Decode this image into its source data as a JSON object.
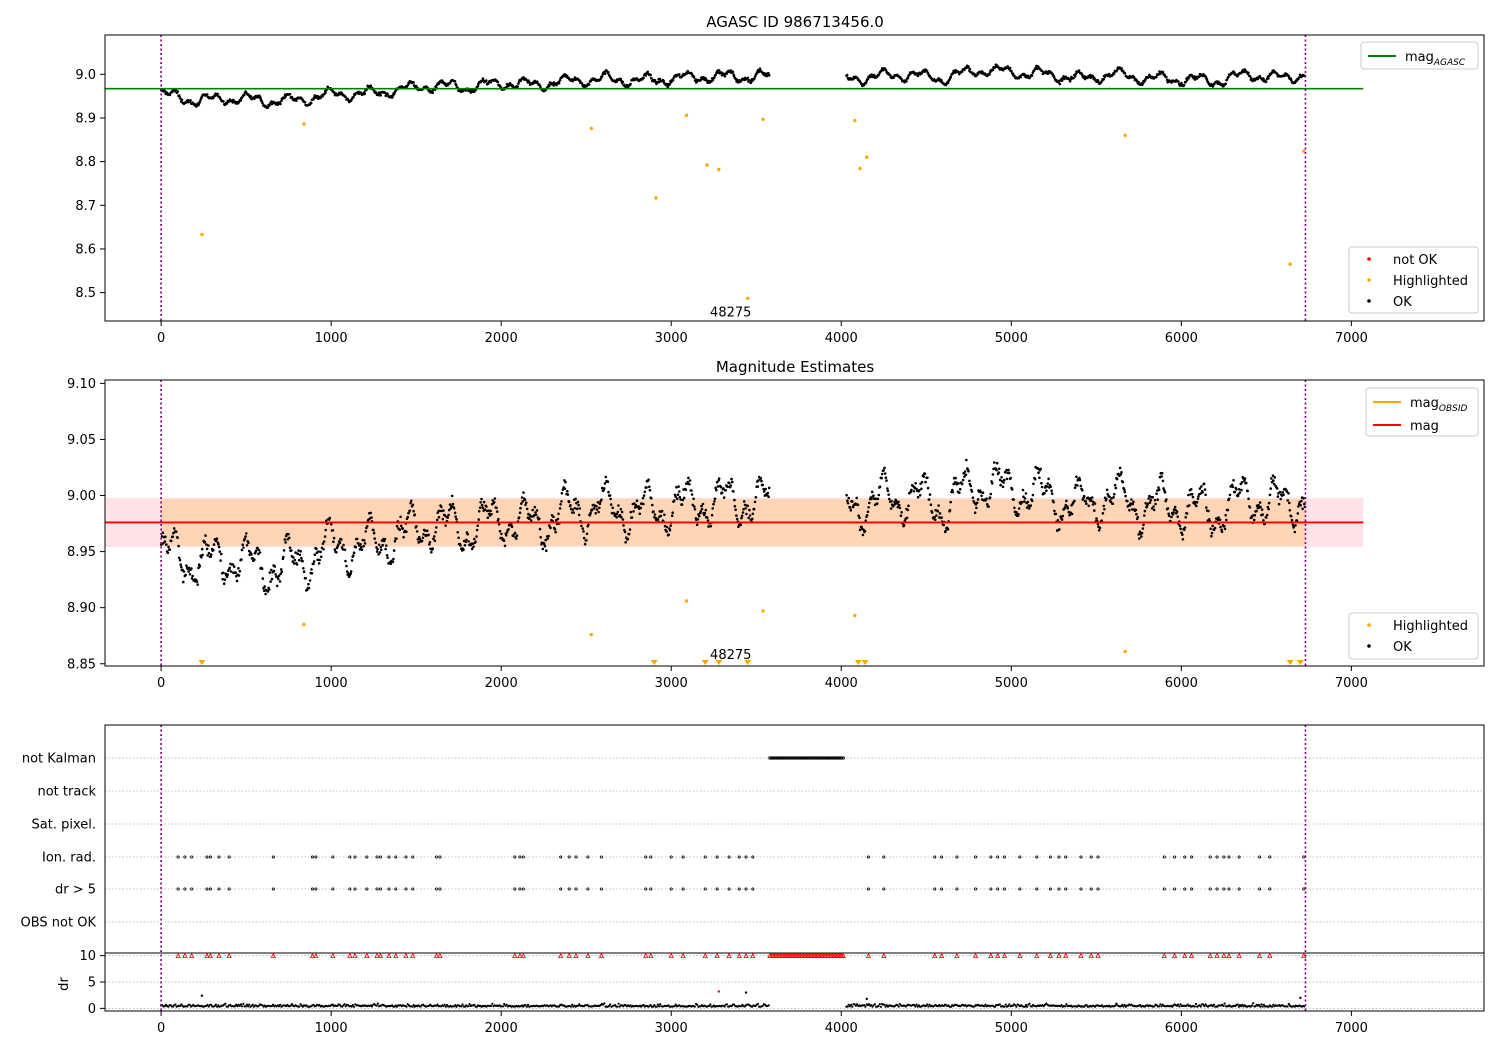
{
  "chart_data": [
    {
      "type": "scatter",
      "title": "AGASC ID 986713456.0",
      "xlim": [
        -330,
        7780
      ],
      "ylim": [
        8.435,
        9.09
      ],
      "xticks": [
        "0",
        "1000",
        "2000",
        "3000",
        "4000",
        "5000",
        "6000",
        "7000"
      ],
      "yticks": [
        "8.5",
        "8.6",
        "8.7",
        "8.8",
        "8.9",
        "9.0"
      ],
      "mag_agasc": 8.967,
      "mag_agasc_x_range": [
        -330,
        7070
      ],
      "obsid_boundaries": [
        0,
        6730
      ],
      "annotation": {
        "text": "48275",
        "x": 3350,
        "y": 8.455
      },
      "legend_lines": [
        {
          "label_main": "mag",
          "label_sub": "AGASC",
          "color": "#008000"
        }
      ],
      "legend_points": [
        {
          "label": "not OK",
          "color": "#ff0000"
        },
        {
          "label": "Highlighted",
          "color": "#ffa500"
        },
        {
          "label": "OK",
          "color": "#000000"
        }
      ],
      "highlighted_points": [
        {
          "x": 240,
          "y": 8.633
        },
        {
          "x": 840,
          "y": 8.886
        },
        {
          "x": 2530,
          "y": 8.876
        },
        {
          "x": 2910,
          "y": 8.717
        },
        {
          "x": 3090,
          "y": 8.906
        },
        {
          "x": 3210,
          "y": 8.792
        },
        {
          "x": 3280,
          "y": 8.782
        },
        {
          "x": 3450,
          "y": 8.487
        },
        {
          "x": 3540,
          "y": 8.897
        },
        {
          "x": 4080,
          "y": 8.894
        },
        {
          "x": 4110,
          "y": 8.784
        },
        {
          "x": 4150,
          "y": 8.81
        },
        {
          "x": 5670,
          "y": 8.86
        },
        {
          "x": 6640,
          "y": 8.565
        },
        {
          "x": 6720,
          "y": 8.824
        }
      ],
      "ok_trend": {
        "segments": [
          [
            0,
            3580
          ],
          [
            4030,
            6730
          ]
        ],
        "x": [
          0,
          200,
          400,
          600,
          800,
          1000,
          1200,
          1400,
          1600,
          1800,
          2000,
          2200,
          2400,
          2600,
          2800,
          3000,
          3200,
          3400,
          3580,
          4030,
          4200,
          4400,
          4600,
          4800,
          5000,
          5200,
          5400,
          5600,
          5800,
          6000,
          6200,
          6400,
          6600,
          6730
        ],
        "y": [
          8.955,
          8.94,
          8.945,
          8.94,
          8.94,
          8.955,
          8.955,
          8.965,
          8.975,
          8.97,
          8.98,
          8.975,
          8.985,
          8.99,
          8.985,
          8.99,
          8.995,
          8.995,
          8.995,
          8.99,
          8.995,
          9.0,
          8.99,
          9.01,
          9.005,
          9.0,
          8.99,
          9.0,
          8.99,
          8.99,
          8.985,
          9.0,
          8.99,
          9.0
        ]
      }
    },
    {
      "type": "scatter",
      "title": "Magnitude Estimates",
      "xlim": [
        -330,
        7780
      ],
      "ylim": [
        8.848,
        9.103
      ],
      "xticks": [
        "0",
        "1000",
        "2000",
        "3000",
        "4000",
        "5000",
        "6000",
        "7000"
      ],
      "yticks": [
        "8.85",
        "8.90",
        "8.95",
        "9.00",
        "9.05",
        "9.10"
      ],
      "mag": 8.976,
      "mag_band": [
        8.954,
        8.998
      ],
      "mag_band_x_range": [
        -330,
        7070
      ],
      "mag_obsid": 8.976,
      "mag_obsid_band": [
        8.955,
        8.997
      ],
      "mag_obsid_x_range": [
        0,
        6730
      ],
      "obsid_boundaries": [
        0,
        6730
      ],
      "annotation": {
        "text": "48275",
        "x": 3350,
        "y": 8.858
      },
      "legend_lines": [
        {
          "label_main": "mag",
          "label_sub": "OBSID",
          "color": "#ffa500"
        },
        {
          "label_main": "mag",
          "label_sub": "",
          "color": "#ff0000"
        }
      ],
      "legend_points": [
        {
          "label": "Highlighted",
          "color": "#ffa500"
        },
        {
          "label": "OK",
          "color": "#000000"
        }
      ],
      "highlighted_points": [
        {
          "x": 840,
          "y": 8.885
        },
        {
          "x": 2530,
          "y": 8.876
        },
        {
          "x": 3090,
          "y": 8.906
        },
        {
          "x": 3540,
          "y": 8.897
        },
        {
          "x": 4080,
          "y": 8.893
        },
        {
          "x": 5670,
          "y": 8.861
        }
      ],
      "lower_limit_markers": [
        240,
        2900,
        3200,
        3280,
        3450,
        4100,
        4140,
        6640,
        6700
      ],
      "ok_trend": {
        "segments": [
          [
            0,
            3580
          ],
          [
            4030,
            6730
          ]
        ],
        "x": [
          0,
          200,
          400,
          600,
          800,
          1000,
          1200,
          1400,
          1600,
          1800,
          2000,
          2200,
          2400,
          2600,
          2800,
          3000,
          3200,
          3400,
          3580,
          4030,
          4200,
          4400,
          4600,
          4800,
          5000,
          5200,
          5400,
          5600,
          5800,
          6000,
          6200,
          6400,
          6600,
          6730
        ],
        "y": [
          8.95,
          8.94,
          8.945,
          8.935,
          8.94,
          8.955,
          8.955,
          8.965,
          8.975,
          8.97,
          8.98,
          8.975,
          8.985,
          8.99,
          8.985,
          8.99,
          8.995,
          8.995,
          8.995,
          8.99,
          8.995,
          9.0,
          8.99,
          9.01,
          9.005,
          9.0,
          8.99,
          9.0,
          8.99,
          8.99,
          8.985,
          9.0,
          8.99,
          9.0
        ]
      }
    },
    {
      "type": "scatter",
      "title": "",
      "xlim": [
        -330,
        7780
      ],
      "xticks": [
        "0",
        "1000",
        "2000",
        "3000",
        "4000",
        "5000",
        "6000",
        "7000"
      ],
      "flag_rows": [
        "not Kalman",
        "not track",
        "Sat. pixel.",
        "Ion. rad.",
        "dr > 5",
        "OBS not OK"
      ],
      "not_kalman_range": [
        3580,
        4020
      ],
      "ion_rad_x": [
        100,
        140,
        180,
        270,
        290,
        340,
        400,
        660,
        890,
        910,
        1010,
        1110,
        1140,
        1210,
        1270,
        1290,
        1340,
        1380,
        1440,
        1480,
        1620,
        1640,
        2080,
        2110,
        2130,
        2350,
        2400,
        2440,
        2510,
        2590,
        2850,
        2880,
        3000,
        3070,
        3200,
        3270,
        3340,
        3400,
        3440,
        3480,
        6720
      ],
      "ion_rad_x_2": [
        4160,
        4250,
        4550,
        4590,
        4680,
        4790,
        4880,
        4920,
        4960,
        5050,
        5150,
        5230,
        5280,
        5320,
        5410,
        5470,
        5510,
        5900,
        5960,
        6020,
        6060,
        6170,
        6210,
        6250,
        6280,
        6340,
        6460,
        6520
      ],
      "dr_subplot": {
        "ylabel": "dr",
        "ylim": [
          -0.5,
          10.5
        ],
        "yticks": [
          "0",
          "5",
          "10"
        ],
        "baseline_segments": [
          [
            0,
            3580
          ],
          [
            4030,
            6730
          ]
        ],
        "outliers": [
          {
            "x": 240,
            "y": 2.4,
            "color": "#000000"
          },
          {
            "x": 3280,
            "y": 3.2,
            "color": "#ff0000"
          },
          {
            "x": 3440,
            "y": 3.0,
            "color": "#000000"
          },
          {
            "x": 4150,
            "y": 1.8,
            "color": "#000000"
          },
          {
            "x": 6700,
            "y": 2.0,
            "color": "#000000"
          }
        ]
      }
    }
  ]
}
